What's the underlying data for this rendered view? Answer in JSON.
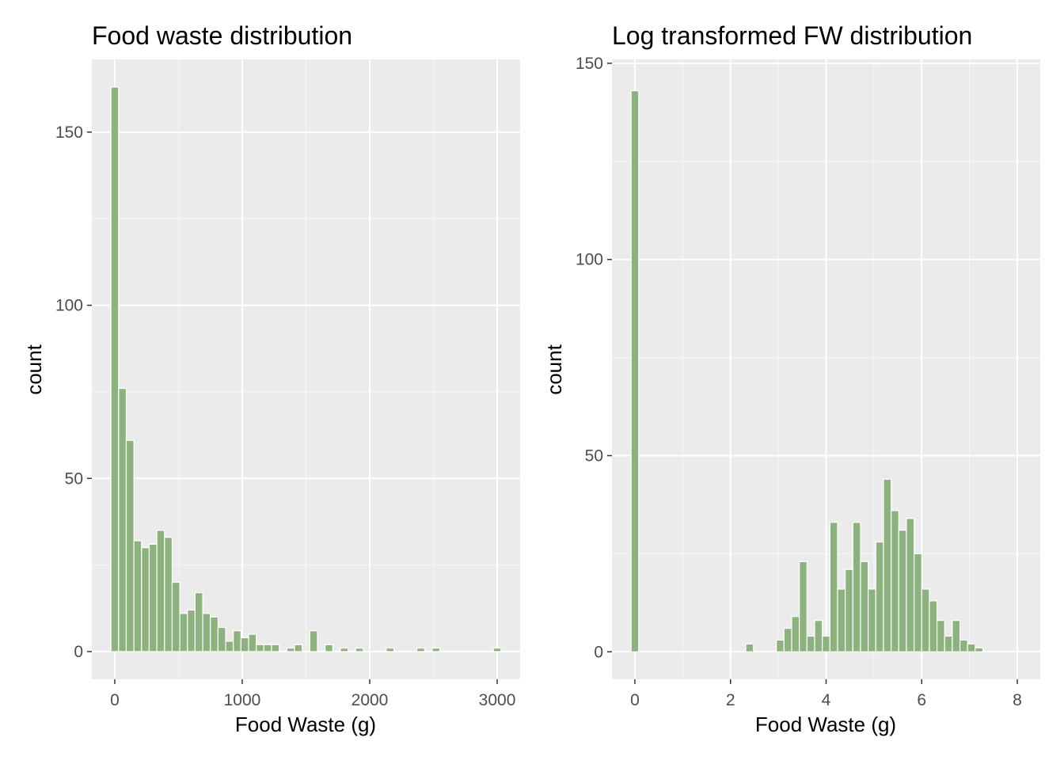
{
  "colors": {
    "bar": "#8db17f",
    "panel": "#ebebeb",
    "grid_major": "#ffffff",
    "tick_text": "#4d4d4d"
  },
  "chart_data": [
    {
      "type": "bar",
      "title": "Food waste distribution",
      "xlabel": "Food Waste (g)",
      "ylabel": "count",
      "xlim": [
        -180,
        3180
      ],
      "ylim": [
        -8,
        171
      ],
      "x_ticks": [
        0,
        1000,
        2000,
        3000
      ],
      "x_tick_labels": [
        "0",
        "1000",
        "2000",
        "3000"
      ],
      "y_ticks": [
        0,
        50,
        100,
        150
      ],
      "y_tick_labels": [
        "0",
        "50",
        "100",
        "150"
      ],
      "grid": true,
      "bin_width": 60,
      "x": [
        0,
        60,
        120,
        180,
        240,
        300,
        360,
        420,
        480,
        540,
        600,
        660,
        720,
        780,
        840,
        900,
        960,
        1020,
        1080,
        1140,
        1200,
        1260,
        1320,
        1380,
        1440,
        1500,
        1560,
        1620,
        1680,
        1740,
        1800,
        1860,
        1920,
        1980,
        2040,
        2100,
        2160,
        2220,
        2280,
        2340,
        2400,
        2460,
        2520,
        2580,
        2640,
        2700,
        2760,
        2820,
        2880,
        2940,
        3000
      ],
      "values": [
        163,
        76,
        61,
        32,
        30,
        31,
        35,
        33,
        20,
        11,
        12,
        17,
        11,
        10,
        7,
        3,
        6,
        4,
        5,
        2,
        2,
        2,
        0,
        1,
        2,
        0,
        6,
        0,
        2,
        0,
        1,
        0,
        1,
        0,
        0,
        0,
        1,
        0,
        0,
        0,
        1,
        0,
        1,
        0,
        0,
        0,
        0,
        0,
        0,
        0,
        1
      ]
    },
    {
      "type": "bar",
      "title": "Log transformed FW distribution",
      "xlabel": "Food Waste (g)",
      "ylabel": "count",
      "xlim": [
        -0.48,
        8.48
      ],
      "ylim": [
        -7,
        151
      ],
      "x_ticks": [
        0,
        2,
        4,
        6,
        8
      ],
      "x_tick_labels": [
        "0",
        "2",
        "4",
        "6",
        "8"
      ],
      "y_ticks": [
        0,
        50,
        100,
        150
      ],
      "y_tick_labels": [
        "0",
        "50",
        "100",
        "150"
      ],
      "grid": true,
      "bin_width": 0.16,
      "x": [
        0,
        0.16,
        0.32,
        0.48,
        0.64,
        0.8,
        0.96,
        1.12,
        1.28,
        1.44,
        1.6,
        1.76,
        1.92,
        2.08,
        2.24,
        2.4,
        2.56,
        2.72,
        2.88,
        3.04,
        3.2,
        3.36,
        3.52,
        3.68,
        3.84,
        4.0,
        4.16,
        4.32,
        4.48,
        4.64,
        4.8,
        4.96,
        5.12,
        5.28,
        5.44,
        5.6,
        5.76,
        5.92,
        6.08,
        6.24,
        6.4,
        6.56,
        6.72,
        6.88,
        7.04,
        7.2,
        7.36,
        7.52,
        7.68,
        7.84,
        8.0
      ],
      "values": [
        143,
        0,
        0,
        0,
        0,
        0,
        0,
        0,
        0,
        0,
        0,
        0,
        0,
        0,
        0,
        2,
        0,
        0,
        0,
        3,
        6,
        9,
        23,
        4,
        8,
        4,
        33,
        16,
        21,
        33,
        23,
        16,
        28,
        44,
        36,
        31,
        34,
        25,
        16,
        13,
        8,
        4,
        8,
        3,
        2,
        1,
        0,
        0,
        0,
        0,
        0
      ]
    }
  ]
}
